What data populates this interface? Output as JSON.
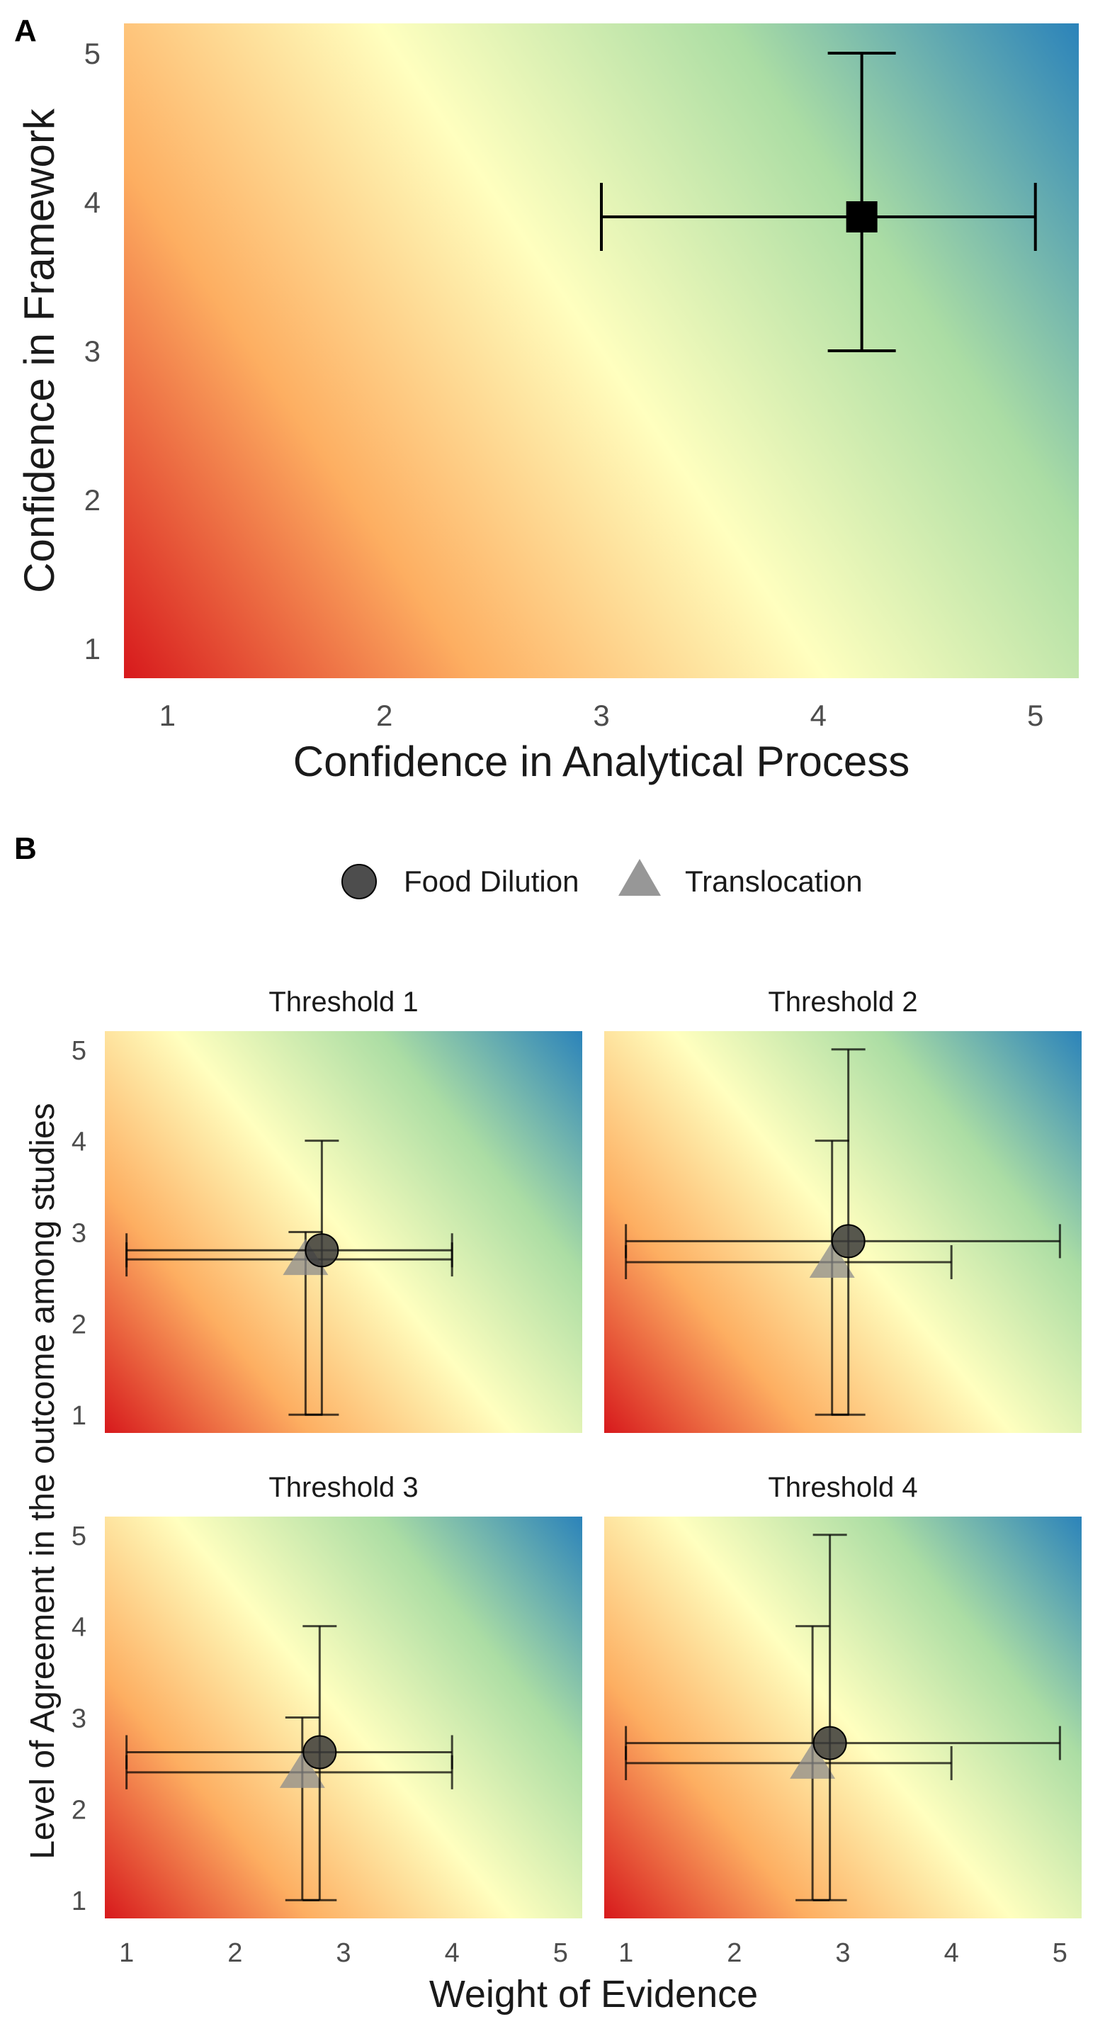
{
  "panel_labels": {
    "a": "A",
    "b": "B"
  },
  "legend": {
    "items": [
      {
        "label": "Food Dilution",
        "shape": "circle",
        "color": "#3a3a3a"
      },
      {
        "label": "Translocation",
        "shape": "triangle",
        "color": "#8c8c8c"
      }
    ]
  },
  "colors": {
    "gradient_low": "#d7191c",
    "gradient_midlow": "#fdae61",
    "gradient_mid": "#ffffbf",
    "gradient_midhigh": "#abdda4",
    "gradient_high": "#2b83ba"
  },
  "chart_data": [
    {
      "id": "A",
      "type": "scatter",
      "xlabel": "Confidence in Analytical Process",
      "ylabel": "Confidence in Framework",
      "xlim": [
        0.8,
        5.2
      ],
      "ylim": [
        0.8,
        5.2
      ],
      "xticks": [
        "1",
        "2",
        "3",
        "4",
        "5"
      ],
      "yticks": [
        "1",
        "2",
        "3",
        "4",
        "5"
      ],
      "background": "diagonal red-yellow-blue gradient (low at bottom-left, high at top-right)",
      "points": [
        {
          "marker": "square",
          "x": 4.2,
          "y": 3.9,
          "xmin": 3.0,
          "xmax": 5.0,
          "ymin": 3.0,
          "ymax": 5.0
        }
      ]
    },
    {
      "id": "B",
      "type": "scatter",
      "xlabel": "Weight of Evidence",
      "ylabel": "Level of Agreement in the outcome among studies",
      "xlim": [
        0.8,
        5.2
      ],
      "ylim": [
        0.8,
        5.2
      ],
      "xticks": [
        "1",
        "2",
        "3",
        "4",
        "5"
      ],
      "yticks": [
        "1",
        "2",
        "3",
        "4",
        "5"
      ],
      "facets": [
        {
          "title": "Threshold 1",
          "points": [
            {
              "series": "Food Dilution",
              "x": 2.8,
              "y": 2.8,
              "xmin": 1.0,
              "xmax": 4.0,
              "ymin": 1.0,
              "ymax": 4.0
            },
            {
              "series": "Translocation",
              "x": 2.65,
              "y": 2.7,
              "xmin": 1.0,
              "xmax": 4.0,
              "ymin": 1.0,
              "ymax": 3.0
            }
          ]
        },
        {
          "title": "Threshold 2",
          "points": [
            {
              "series": "Food Dilution",
              "x": 3.05,
              "y": 2.9,
              "xmin": 1.0,
              "xmax": 5.0,
              "ymin": 1.0,
              "ymax": 5.0
            },
            {
              "series": "Translocation",
              "x": 2.9,
              "y": 2.67,
              "xmin": 1.0,
              "xmax": 4.0,
              "ymin": 1.0,
              "ymax": 4.0
            }
          ]
        },
        {
          "title": "Threshold 3",
          "points": [
            {
              "series": "Food Dilution",
              "x": 2.78,
              "y": 2.62,
              "xmin": 1.0,
              "xmax": 4.0,
              "ymin": 1.0,
              "ymax": 4.0
            },
            {
              "series": "Translocation",
              "x": 2.62,
              "y": 2.4,
              "xmin": 1.0,
              "xmax": 4.0,
              "ymin": 1.0,
              "ymax": 3.0
            }
          ]
        },
        {
          "title": "Threshold 4",
          "points": [
            {
              "series": "Food Dilution",
              "x": 2.88,
              "y": 2.72,
              "xmin": 1.0,
              "xmax": 5.0,
              "ymin": 1.0,
              "ymax": 5.0
            },
            {
              "series": "Translocation",
              "x": 2.72,
              "y": 2.5,
              "xmin": 1.0,
              "xmax": 4.0,
              "ymin": 1.0,
              "ymax": 4.0
            }
          ]
        }
      ]
    }
  ]
}
